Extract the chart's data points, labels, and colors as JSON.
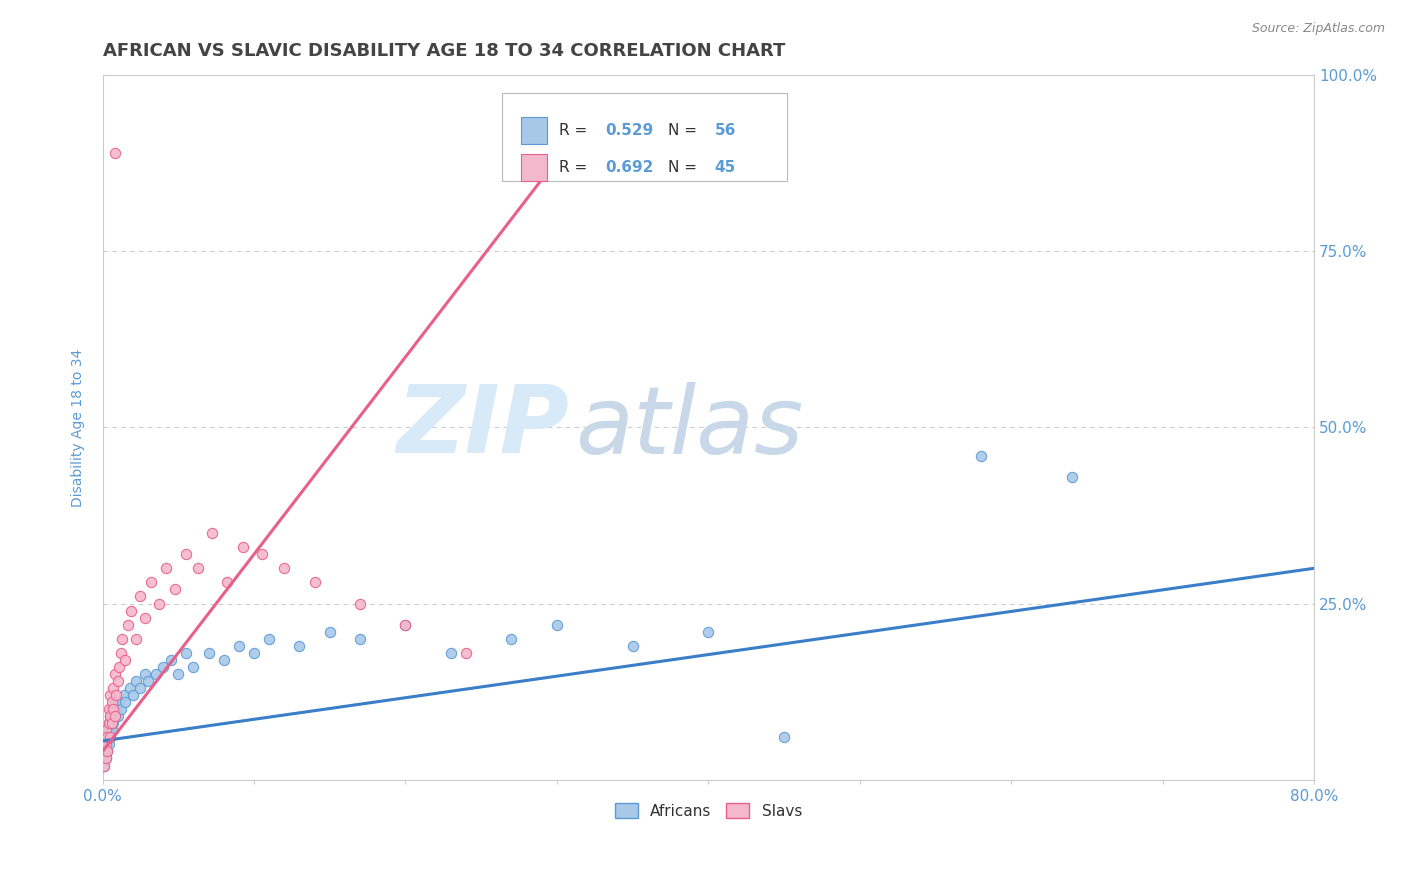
{
  "title": "AFRICAN VS SLAVIC DISABILITY AGE 18 TO 34 CORRELATION CHART",
  "source_text": "Source: ZipAtlas.com",
  "ylabel": "Disability Age 18 to 34",
  "xlim": [
    0.0,
    0.8
  ],
  "ylim": [
    0.0,
    1.0
  ],
  "african_color": "#A8C8E8",
  "african_edge_color": "#5B9BD5",
  "slav_color": "#F4B8CC",
  "slav_edge_color": "#E8608A",
  "african_line_color": "#3A7DC9",
  "slav_line_color": "#E8608A",
  "title_color": "#444444",
  "axis_color": "#5B9BD5",
  "watermark_color": "#D8EAF8",
  "watermark_color2": "#C8D8E8",
  "watermark_text1": "ZIP",
  "watermark_text2": "atlas",
  "R_african": 0.529,
  "N_african": 56,
  "R_slav": 0.692,
  "N_slav": 45,
  "background_color": "#FFFFFF",
  "grid_color": "#CCCCCC",
  "title_fontsize": 13,
  "label_fontsize": 10,
  "african_x": [
    0.001,
    0.001,
    0.001,
    0.002,
    0.002,
    0.002,
    0.003,
    0.003,
    0.003,
    0.004,
    0.004,
    0.004,
    0.005,
    0.005,
    0.005,
    0.006,
    0.006,
    0.007,
    0.007,
    0.008,
    0.008,
    0.009,
    0.01,
    0.011,
    0.012,
    0.014,
    0.015,
    0.018,
    0.02,
    0.022,
    0.025,
    0.028,
    0.03,
    0.035,
    0.04,
    0.045,
    0.05,
    0.055,
    0.06,
    0.07,
    0.08,
    0.09,
    0.1,
    0.11,
    0.13,
    0.15,
    0.17,
    0.2,
    0.23,
    0.27,
    0.3,
    0.35,
    0.4,
    0.45,
    0.58,
    0.64
  ],
  "african_y": [
    0.02,
    0.03,
    0.04,
    0.03,
    0.05,
    0.06,
    0.04,
    0.06,
    0.07,
    0.05,
    0.07,
    0.08,
    0.06,
    0.08,
    0.09,
    0.07,
    0.09,
    0.08,
    0.1,
    0.09,
    0.11,
    0.1,
    0.09,
    0.11,
    0.1,
    0.12,
    0.11,
    0.13,
    0.12,
    0.14,
    0.13,
    0.15,
    0.14,
    0.15,
    0.16,
    0.17,
    0.15,
    0.18,
    0.16,
    0.18,
    0.17,
    0.19,
    0.18,
    0.2,
    0.19,
    0.21,
    0.2,
    0.22,
    0.18,
    0.2,
    0.22,
    0.19,
    0.21,
    0.06,
    0.46,
    0.43
  ],
  "slav_x": [
    0.001,
    0.001,
    0.002,
    0.002,
    0.002,
    0.003,
    0.003,
    0.004,
    0.004,
    0.005,
    0.005,
    0.005,
    0.006,
    0.006,
    0.007,
    0.007,
    0.008,
    0.008,
    0.009,
    0.01,
    0.011,
    0.012,
    0.013,
    0.015,
    0.017,
    0.019,
    0.022,
    0.025,
    0.028,
    0.032,
    0.037,
    0.042,
    0.048,
    0.055,
    0.063,
    0.072,
    0.082,
    0.093,
    0.105,
    0.12,
    0.14,
    0.17,
    0.2,
    0.24,
    0.008
  ],
  "slav_y": [
    0.02,
    0.04,
    0.03,
    0.05,
    0.07,
    0.04,
    0.06,
    0.08,
    0.1,
    0.06,
    0.09,
    0.12,
    0.08,
    0.11,
    0.1,
    0.13,
    0.09,
    0.15,
    0.12,
    0.14,
    0.16,
    0.18,
    0.2,
    0.17,
    0.22,
    0.24,
    0.2,
    0.26,
    0.23,
    0.28,
    0.25,
    0.3,
    0.27,
    0.32,
    0.3,
    0.35,
    0.28,
    0.33,
    0.32,
    0.3,
    0.28,
    0.25,
    0.22,
    0.18,
    0.89
  ],
  "af_line_x0": 0.0,
  "af_line_y0": 0.055,
  "af_line_x1": 0.8,
  "af_line_y1": 0.3,
  "sl_line_x0": 0.0,
  "sl_line_y0": 0.04,
  "sl_line_x1": 0.3,
  "sl_line_y1": 0.88
}
